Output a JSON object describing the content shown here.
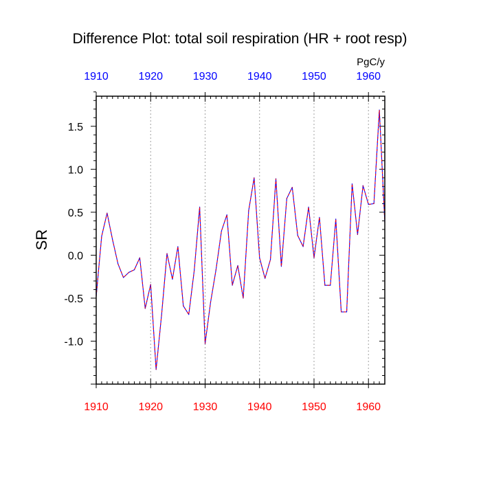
{
  "chart_data": {
    "type": "line",
    "title": "Difference Plot: total soil respiration (HR + root resp)",
    "units": "PgC/y",
    "ylabel": "SR",
    "xlabel": "",
    "xlim": [
      1910,
      1963
    ],
    "ylim": [
      -1.5,
      1.85
    ],
    "x_ticks": [
      1910,
      1920,
      1930,
      1940,
      1950,
      1960
    ],
    "y_ticks": [
      -1.0,
      -0.5,
      0.0,
      0.5,
      1.0,
      1.5
    ],
    "y_tick_labels": [
      "-1.0",
      "-0.5",
      "0.0",
      "0.5",
      "1.0",
      "1.5"
    ],
    "vertical_grid": "dotted at major x ticks",
    "colors": {
      "top_tick_labels": "#0000ff",
      "bottom_tick_labels": "#ff0000",
      "series_primary": "#0000ff",
      "series_overlay": "#ff0000"
    },
    "x": [
      1910,
      1911,
      1912,
      1913,
      1914,
      1915,
      1916,
      1917,
      1918,
      1919,
      1920,
      1921,
      1922,
      1923,
      1924,
      1925,
      1926,
      1927,
      1928,
      1929,
      1930,
      1931,
      1932,
      1933,
      1934,
      1935,
      1936,
      1937,
      1938,
      1939,
      1940,
      1941,
      1942,
      1943,
      1944,
      1945,
      1946,
      1947,
      1948,
      1949,
      1950,
      1951,
      1952,
      1953,
      1954,
      1955,
      1956,
      1957,
      1958,
      1959,
      1960,
      1961,
      1962,
      1963
    ],
    "series": [
      {
        "values": [
          -0.48,
          0.22,
          0.49,
          0.18,
          -0.1,
          -0.26,
          -0.2,
          -0.17,
          -0.03,
          -0.62,
          -0.34,
          -1.33,
          -0.7,
          0.02,
          -0.28,
          0.1,
          -0.59,
          -0.69,
          -0.18,
          0.56,
          -1.03,
          -0.55,
          -0.17,
          0.28,
          0.47,
          -0.35,
          -0.12,
          -0.5,
          0.52,
          0.9,
          -0.03,
          -0.27,
          -0.05,
          0.89,
          -0.13,
          0.66,
          0.79,
          0.23,
          0.1,
          0.56,
          -0.03,
          0.44,
          -0.35,
          -0.35,
          0.42,
          -0.66,
          -0.66,
          0.83,
          0.24,
          0.81,
          0.59,
          0.6,
          1.69,
          0.38
        ]
      }
    ]
  }
}
